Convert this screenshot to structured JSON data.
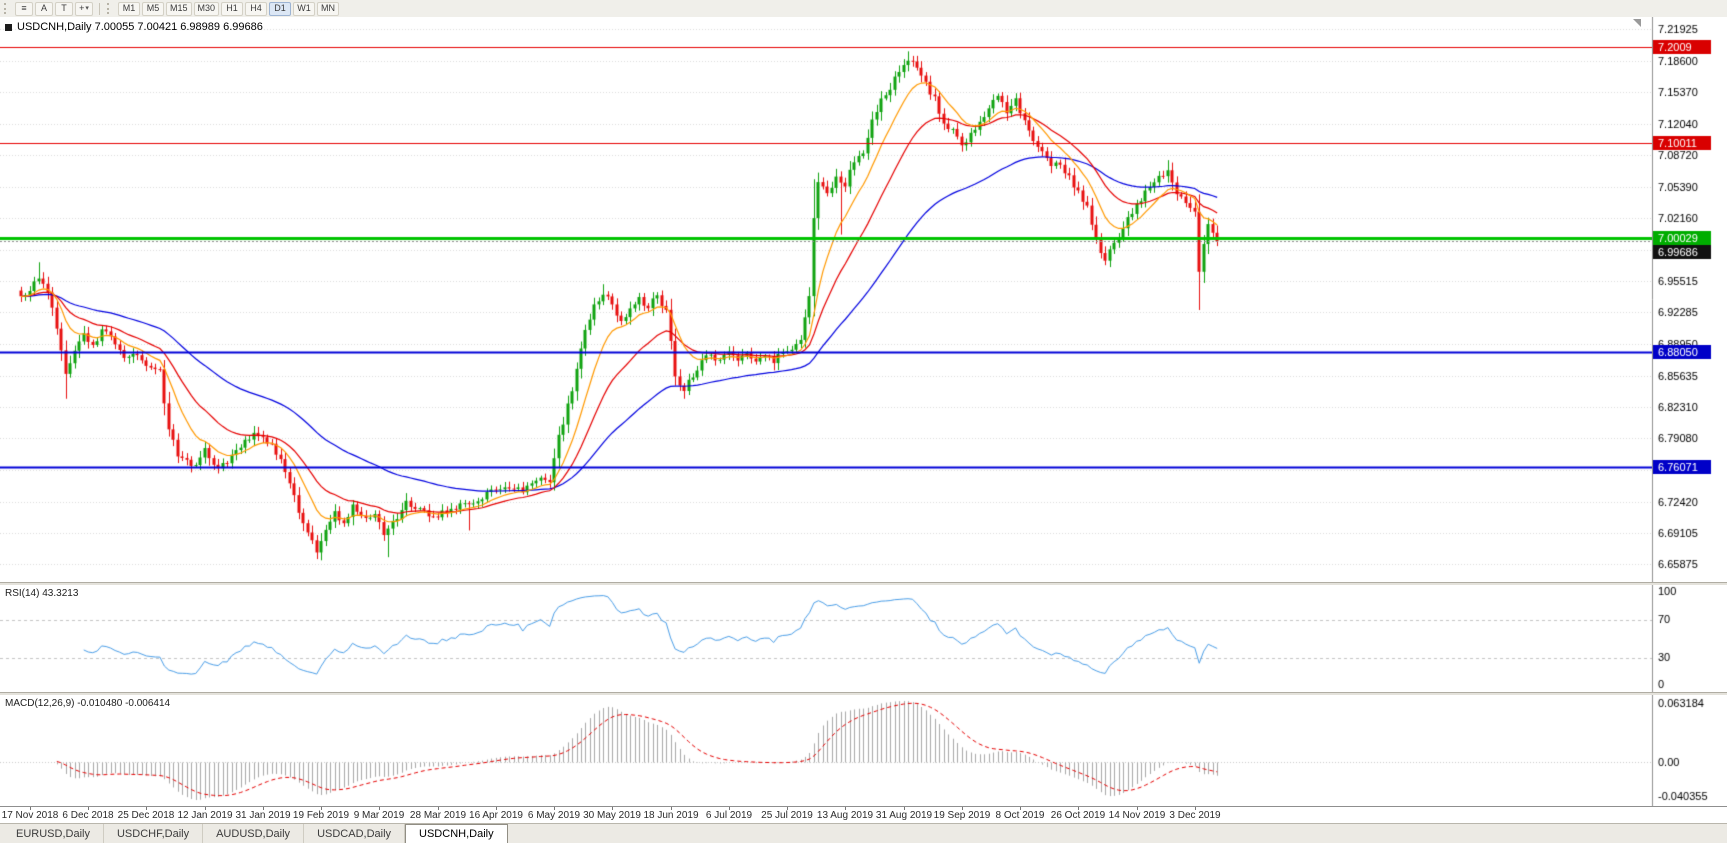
{
  "toolbar": {
    "icons": [
      {
        "name": "tick-list-icon",
        "glyph": "≡"
      },
      {
        "name": "font-tool-icon",
        "glyph": "A"
      },
      {
        "name": "text-label-tool-icon",
        "glyph": "T"
      },
      {
        "name": "crosshair-tool-icon",
        "glyph": "+",
        "caret": "▾"
      }
    ],
    "timeframes": [
      "M1",
      "M5",
      "M15",
      "M30",
      "H1",
      "H4",
      "D1",
      "W1",
      "MN"
    ],
    "active_timeframe": "D1"
  },
  "chart": {
    "symbol": "USDCNH",
    "period": "Daily",
    "title_line": "USDCNH,Daily 7.00055 7.00421 6.98989 6.99686",
    "ohlc": {
      "open": "7.00055",
      "high": "7.00421",
      "low": "6.98989",
      "close": "6.99686"
    }
  },
  "price_axis": {
    "range": [
      6.64,
      7.232
    ],
    "ticks": [
      {
        "v": 7.21925,
        "label": "7.21925"
      },
      {
        "v": 7.186,
        "label": "7.18600"
      },
      {
        "v": 7.1537,
        "label": "7.15370"
      },
      {
        "v": 7.1204,
        "label": "7.12040"
      },
      {
        "v": 7.0872,
        "label": "7.08720"
      },
      {
        "v": 7.0539,
        "label": "7.05390"
      },
      {
        "v": 7.0216,
        "label": "7.02160"
      },
      {
        "v": 6.9883,
        "label": ""
      },
      {
        "v": 6.95515,
        "label": "6.95515"
      },
      {
        "v": 6.92285,
        "label": "6.92285"
      },
      {
        "v": 6.8895,
        "label": "6.88950"
      },
      {
        "v": 6.85635,
        "label": "6.85635"
      },
      {
        "v": 6.8231,
        "label": "6.82310"
      },
      {
        "v": 6.7908,
        "label": "6.79080"
      },
      {
        "v": 6.7575,
        "label": ""
      },
      {
        "v": 6.7242,
        "label": "6.72420"
      },
      {
        "v": 6.69105,
        "label": "6.69105"
      },
      {
        "v": 6.65875,
        "label": "6.65875"
      }
    ]
  },
  "levels": [
    {
      "price": 7.2009,
      "label": "7.2009",
      "line": "#e60000",
      "width": 1,
      "badge_bg": "#d90000"
    },
    {
      "price": 7.10011,
      "label": "7.10011",
      "line": "#e60000",
      "width": 1,
      "badge_bg": "#d90000"
    },
    {
      "price": 7.00029,
      "label": "7.00029",
      "line": "#00c400",
      "width": 3,
      "badge_bg": "#00ad00"
    },
    {
      "price": 6.99686,
      "label": "6.99686",
      "line": "#8c8c8c",
      "width": 1,
      "dash": [
        2,
        2
      ],
      "badge_bg": "#111111"
    },
    {
      "price": 6.8805,
      "label": "6.88050",
      "line": "#0000d8",
      "width": 2,
      "badge_bg": "#0000c8"
    },
    {
      "price": 6.76071,
      "label": "6.76071",
      "line": "#0000d8",
      "width": 2,
      "badge_bg": "#0000c8"
    }
  ],
  "indicators": {
    "rsi": {
      "name": "RSI",
      "period": 14,
      "value": "43.3213",
      "label": "RSI(14) 43.3213",
      "color": "#4a9ee8",
      "levels": [
        70,
        30
      ],
      "axis_labels": [
        "100",
        "70",
        "30",
        "0"
      ]
    },
    "macd": {
      "name": "MACD",
      "fast": 12,
      "slow": 26,
      "signal": 9,
      "value": "-0.010480",
      "signal_value": "-0.006414",
      "label": "MACD(12,26,9) -0.010480 -0.006414",
      "histogram_color": "#a8a8a8",
      "signal_color": "#e60000",
      "axis_labels": [
        "0.063184",
        "0.00",
        "-0.040355"
      ]
    }
  },
  "chart_data": {
    "type": "candlestick",
    "symbol": "USDCNH",
    "timeframe": "D1",
    "candle_count": 268,
    "up_color": "#0fa30f",
    "down_color": "#e81010",
    "close_anchors": [
      [
        0,
        6.938
      ],
      [
        2,
        6.948
      ],
      [
        4,
        6.957
      ],
      [
        6,
        6.944
      ],
      [
        8,
        6.906
      ],
      [
        10,
        6.858
      ],
      [
        12,
        6.884
      ],
      [
        14,
        6.9
      ],
      [
        16,
        6.886
      ],
      [
        18,
        6.904
      ],
      [
        20,
        6.896
      ],
      [
        23,
        6.876
      ],
      [
        26,
        6.879
      ],
      [
        28,
        6.868
      ],
      [
        31,
        6.86
      ],
      [
        33,
        6.8
      ],
      [
        35,
        6.774
      ],
      [
        38,
        6.76
      ],
      [
        41,
        6.778
      ],
      [
        44,
        6.758
      ],
      [
        47,
        6.772
      ],
      [
        50,
        6.79
      ],
      [
        53,
        6.796
      ],
      [
        56,
        6.782
      ],
      [
        58,
        6.768
      ],
      [
        60,
        6.744
      ],
      [
        62,
        6.712
      ],
      [
        64,
        6.69
      ],
      [
        66,
        6.672
      ],
      [
        68,
        6.696
      ],
      [
        70,
        6.712
      ],
      [
        72,
        6.702
      ],
      [
        74,
        6.718
      ],
      [
        77,
        6.707
      ],
      [
        79,
        6.71
      ],
      [
        81,
        6.692
      ],
      [
        83,
        6.702
      ],
      [
        86,
        6.722
      ],
      [
        89,
        6.716
      ],
      [
        92,
        6.708
      ],
      [
        96,
        6.716
      ],
      [
        100,
        6.723
      ],
      [
        104,
        6.731
      ],
      [
        108,
        6.742
      ],
      [
        112,
        6.735
      ],
      [
        116,
        6.748
      ],
      [
        118,
        6.742
      ],
      [
        120,
        6.792
      ],
      [
        122,
        6.824
      ],
      [
        124,
        6.862
      ],
      [
        126,
        6.904
      ],
      [
        128,
        6.928
      ],
      [
        130,
        6.943
      ],
      [
        132,
        6.929
      ],
      [
        134,
        6.91
      ],
      [
        136,
        6.924
      ],
      [
        138,
        6.937
      ],
      [
        140,
        6.928
      ],
      [
        142,
        6.941
      ],
      [
        144,
        6.924
      ],
      [
        146,
        6.856
      ],
      [
        148,
        6.841
      ],
      [
        150,
        6.856
      ],
      [
        152,
        6.871
      ],
      [
        154,
        6.879
      ],
      [
        156,
        6.871
      ],
      [
        158,
        6.881
      ],
      [
        160,
        6.872
      ],
      [
        162,
        6.879
      ],
      [
        164,
        6.87
      ],
      [
        166,
        6.877
      ],
      [
        168,
        6.872
      ],
      [
        170,
        6.879
      ],
      [
        172,
        6.884
      ],
      [
        174,
        6.896
      ],
      [
        176,
        6.94
      ],
      [
        177,
        7.022
      ],
      [
        178,
        7.058
      ],
      [
        180,
        7.046
      ],
      [
        182,
        7.062
      ],
      [
        184,
        7.057
      ],
      [
        186,
        7.08
      ],
      [
        188,
        7.092
      ],
      [
        190,
        7.124
      ],
      [
        192,
        7.146
      ],
      [
        194,
        7.159
      ],
      [
        196,
        7.174
      ],
      [
        198,
        7.186
      ],
      [
        200,
        7.178
      ],
      [
        202,
        7.162
      ],
      [
        204,
        7.146
      ],
      [
        206,
        7.12
      ],
      [
        208,
        7.112
      ],
      [
        210,
        7.098
      ],
      [
        212,
        7.108
      ],
      [
        214,
        7.123
      ],
      [
        216,
        7.138
      ],
      [
        218,
        7.149
      ],
      [
        220,
        7.134
      ],
      [
        222,
        7.147
      ],
      [
        224,
        7.121
      ],
      [
        226,
        7.099
      ],
      [
        228,
        7.089
      ],
      [
        230,
        7.073
      ],
      [
        232,
        7.079
      ],
      [
        234,
        7.063
      ],
      [
        236,
        7.049
      ],
      [
        238,
        7.032
      ],
      [
        240,
        6.998
      ],
      [
        242,
        6.978
      ],
      [
        244,
        6.993
      ],
      [
        246,
        7.013
      ],
      [
        248,
        7.028
      ],
      [
        251,
        7.048
      ],
      [
        254,
        7.066
      ],
      [
        256,
        7.071
      ],
      [
        258,
        7.047
      ],
      [
        260,
        7.037
      ],
      [
        262,
        7.03
      ],
      [
        263,
        6.965
      ],
      [
        264,
        6.992
      ],
      [
        265,
        7.014
      ],
      [
        266,
        7.006
      ],
      [
        267,
        6.99686
      ]
    ],
    "spikes": [
      {
        "index": 4,
        "high": 6.975
      },
      {
        "index": 10,
        "low": 6.832
      },
      {
        "index": 66,
        "low": 6.664
      },
      {
        "index": 82,
        "low": 6.666
      },
      {
        "index": 100,
        "low": 6.694
      },
      {
        "index": 130,
        "high": 6.952
      },
      {
        "index": 148,
        "low": 6.832
      },
      {
        "index": 177,
        "high": 7.062
      },
      {
        "index": 183,
        "low": 7.004
      },
      {
        "index": 198,
        "high": 7.196
      },
      {
        "index": 256,
        "high": 7.082
      },
      {
        "index": 263,
        "low": 6.925
      }
    ],
    "moving_averages": [
      {
        "period": 55,
        "method": "ema",
        "color": "#0000e0"
      },
      {
        "period": 22,
        "method": "ema",
        "color": "#e60000"
      },
      {
        "period": 10,
        "method": "ema",
        "color": "#ff9900"
      }
    ],
    "date_ticks": [
      {
        "index": 2,
        "label": "17 Nov 2018"
      },
      {
        "index": 15,
        "label": "6 Dec 2018"
      },
      {
        "index": 28,
        "label": "25 Dec 2018"
      },
      {
        "index": 41,
        "label": "12 Jan 2019"
      },
      {
        "index": 54,
        "label": "31 Jan 2019"
      },
      {
        "index": 67,
        "label": "19 Feb 2019"
      },
      {
        "index": 80,
        "label": "9 Mar 2019"
      },
      {
        "index": 93,
        "label": "28 Mar 2019"
      },
      {
        "index": 106,
        "label": "16 Apr 2019"
      },
      {
        "index": 119,
        "label": "6 May 2019"
      },
      {
        "index": 132,
        "label": "30 May 2019"
      },
      {
        "index": 145,
        "label": "18 Jun 2019"
      },
      {
        "index": 158,
        "label": "6 Jul 2019"
      },
      {
        "index": 171,
        "label": "25 Jul 2019"
      },
      {
        "index": 184,
        "label": "13 Aug 2019"
      },
      {
        "index": 197,
        "label": "31 Aug 2019"
      },
      {
        "index": 210,
        "label": "19 Sep 2019"
      },
      {
        "index": 223,
        "label": "8 Oct 2019"
      },
      {
        "index": 236,
        "label": "26 Oct 2019"
      },
      {
        "index": 249,
        "label": "14 Nov 2019"
      },
      {
        "index": 262,
        "label": "3 Dec 2019"
      }
    ]
  },
  "tabs": [
    {
      "label": "EURUSD,Daily",
      "active": false
    },
    {
      "label": "USDCHF,Daily",
      "active": false
    },
    {
      "label": "AUDUSD,Daily",
      "active": false
    },
    {
      "label": "USDCAD,Daily",
      "active": false
    },
    {
      "label": "USDCNH,Daily",
      "active": true
    }
  ]
}
